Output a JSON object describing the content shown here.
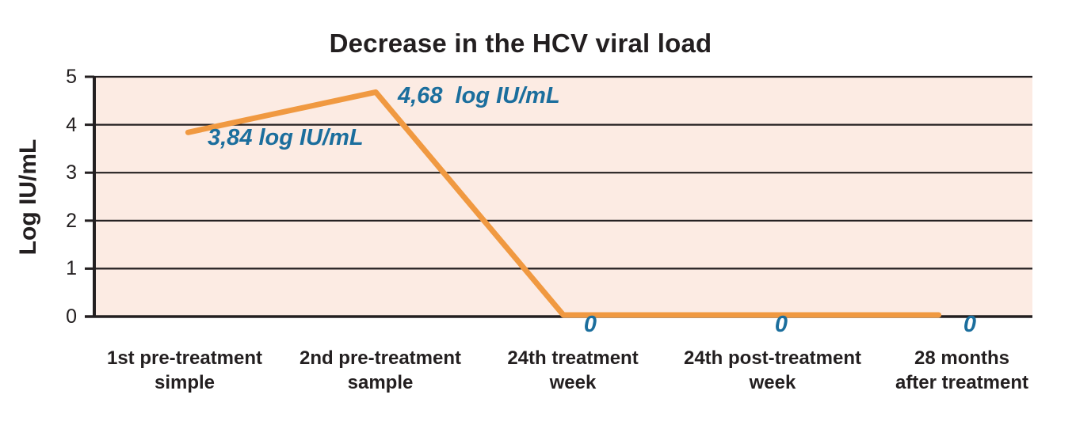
{
  "chart_data": {
    "type": "line",
    "title": "Decrease in the HCV viral load",
    "ylabel": "Log IU/mL",
    "xlabel": "",
    "categories": [
      "1st pre-treatment\nsimple",
      "2nd pre-treatment\nsample",
      "24th treatment\nweek",
      "24th post-treatment\nweek",
      "28 months\nafter treatment"
    ],
    "values": [
      3.84,
      4.68,
      0,
      0,
      0
    ],
    "point_labels": [
      "3,84 log IU/mL",
      "4,68  log IU/mL",
      "0",
      "0",
      "0"
    ],
    "ylim": [
      0,
      5
    ],
    "yticks": [
      0,
      1,
      2,
      3,
      4,
      5
    ],
    "grid": "horizontal",
    "legend": "none",
    "colors": {
      "line": "#F09941",
      "point_label": "#1B6E9D",
      "plot_bg": "#FCEBE3",
      "axis": "#231F20",
      "text": "#231F20"
    }
  }
}
